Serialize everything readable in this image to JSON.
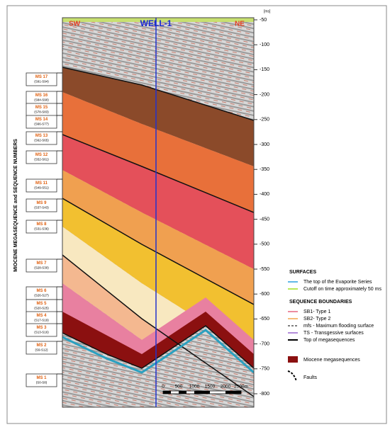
{
  "section": {
    "left_label": "SW",
    "well_label": "WELL-1",
    "right_label": "NE"
  },
  "time_axis": {
    "unit": "[ms]",
    "ticks": [
      -50,
      -100,
      -150,
      -200,
      -250,
      -300,
      -350,
      -400,
      -450,
      -500,
      -550,
      -600,
      -650,
      -700,
      -750,
      -800
    ]
  },
  "sequence_axis_title": "MIOCENE MEGASEQUENCE and SEQUENCE NUMBERS",
  "megasequences": [
    {
      "name": "MS 17",
      "range": "(S91-S94)"
    },
    {
      "name": "MS 16",
      "range": "(S84-S90)"
    },
    {
      "name": "MS 15",
      "range": "(S78-S83)"
    },
    {
      "name": "MS 14",
      "range": "(S66-S77)"
    },
    {
      "name": "MS 13",
      "range": "(S62-S65)"
    },
    {
      "name": "MS 12",
      "range": "(S52-S61)"
    },
    {
      "name": "MS 11",
      "range": "(S49-S51)"
    },
    {
      "name": "MS 9",
      "range": "(S37-S43)"
    },
    {
      "name": "MS 8",
      "range": "(S31-S36)"
    },
    {
      "name": "MS 7",
      "range": "(S28-S30)"
    },
    {
      "name": "MS 6",
      "range": "(S26-S27)"
    },
    {
      "name": "MS 5",
      "range": "(S20-S25)"
    },
    {
      "name": "MS 4",
      "range": "(S17-S19)"
    },
    {
      "name": "MS 3",
      "range": "(S13-S16)"
    },
    {
      "name": "MS 2",
      "range": "(S9-S12)"
    },
    {
      "name": "MS 1",
      "range": "(S0-S8)"
    }
  ],
  "legend": {
    "surfaces_title": "SURFACES",
    "surfaces": [
      "The top of the Evaporite Series",
      "Cutoff on time approximately 50 ms"
    ],
    "boundaries_title": "SEQUENCE BOUNDARIES",
    "boundaries": [
      "SB1- Type 1",
      "SB2- Type 2",
      "mfs - Maximum flooding surface",
      "TS - Transgessive surfaces",
      "Top of megasequences"
    ],
    "megasequences_label": "Miocene megasequences",
    "faults_label": "Faults"
  },
  "scale_bar": [
    "0",
    "500",
    "1000",
    "1500",
    "2000",
    "2500m"
  ]
}
